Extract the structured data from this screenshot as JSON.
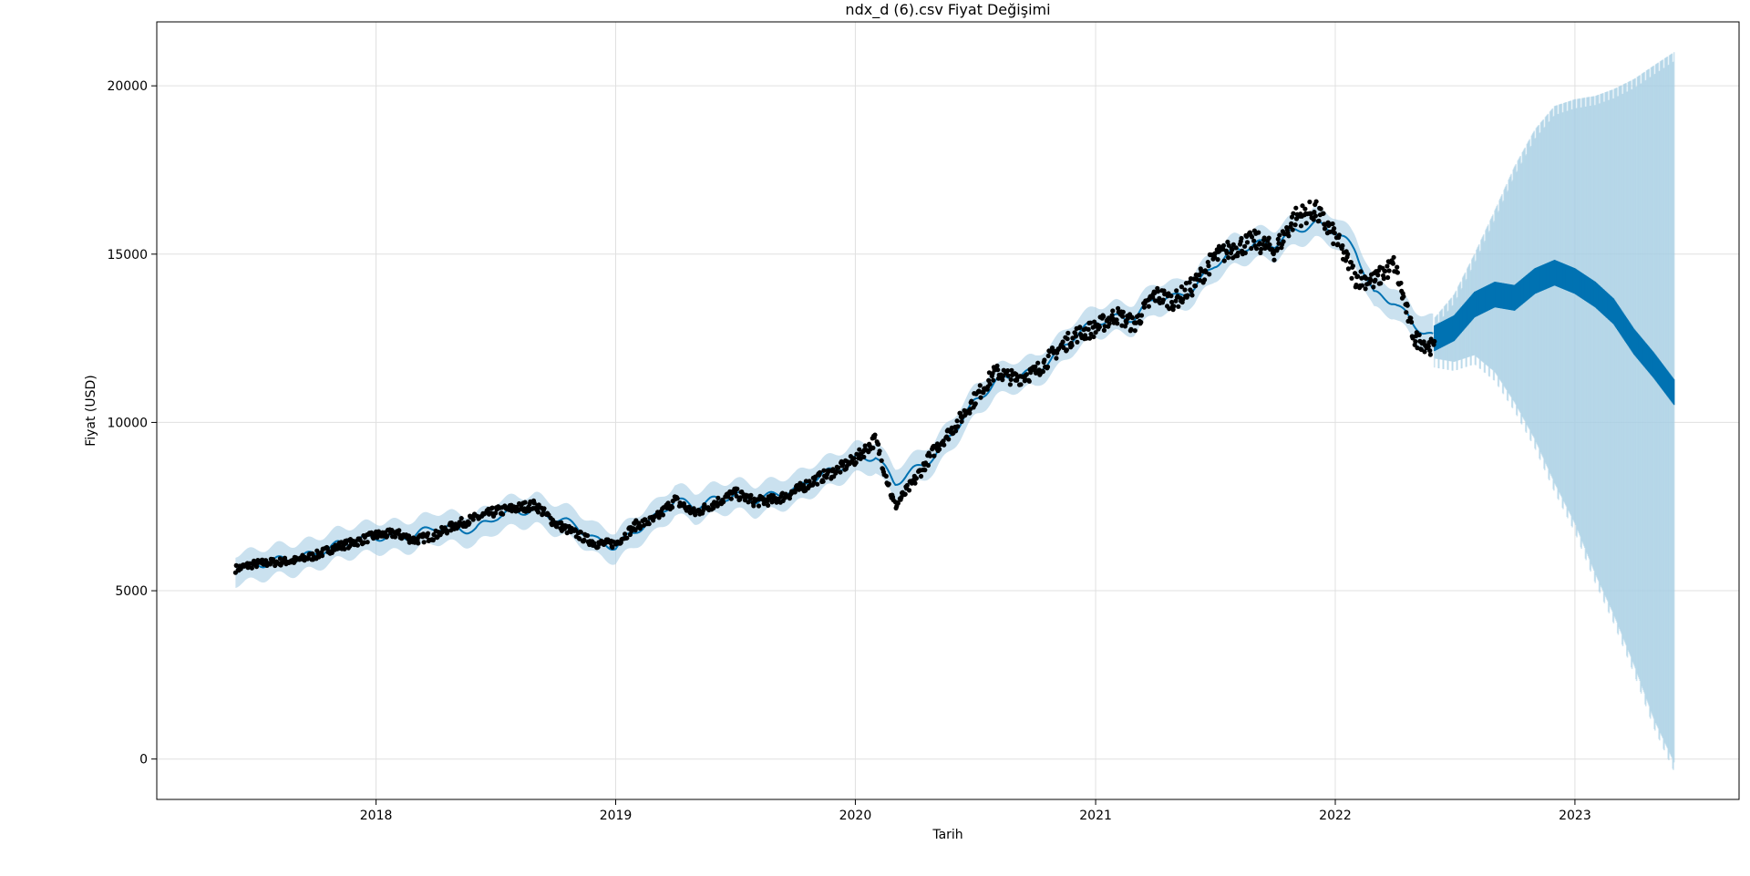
{
  "chart_data": {
    "type": "line",
    "title": "ndx_d (6).csv  Fiyat Değişimi",
    "xlabel": "Tarih",
    "ylabel": "Fiyat (USD)",
    "x_range": [
      "2017-02-01",
      "2023-09-08"
    ],
    "ylim": [
      -1200,
      21900
    ],
    "x_ticks": [
      "2018-01-01",
      "2019-01-01",
      "2020-01-01",
      "2021-01-01",
      "2022-01-01",
      "2023-01-01"
    ],
    "x_tick_labels": [
      "2018",
      "2019",
      "2020",
      "2021",
      "2022",
      "2023"
    ],
    "y_ticks": [
      0,
      5000,
      10000,
      15000,
      20000
    ],
    "y_tick_labels": [
      "0",
      "5000",
      "10000",
      "15000",
      "20000"
    ],
    "grid": true,
    "history_end": "2022-06-01",
    "forecast_end": "2023-06-01",
    "colors": {
      "actual": "#000000",
      "forecast": "#0072b2",
      "uncertainty": "#a6cde4"
    },
    "series": [
      {
        "role": "actual",
        "marker": "dot",
        "x": [
          "2017-06-01",
          "2017-07-01",
          "2017-08-01",
          "2017-09-01",
          "2017-10-01",
          "2017-11-01",
          "2017-12-01",
          "2018-01-01",
          "2018-02-01",
          "2018-03-01",
          "2018-04-01",
          "2018-05-01",
          "2018-06-01",
          "2018-07-01",
          "2018-08-01",
          "2018-09-01",
          "2018-10-01",
          "2018-11-01",
          "2018-12-01",
          "2019-01-01",
          "2019-02-01",
          "2019-03-01",
          "2019-04-01",
          "2019-05-01",
          "2019-06-01",
          "2019-07-01",
          "2019-08-01",
          "2019-09-01",
          "2019-10-01",
          "2019-11-01",
          "2019-12-01",
          "2020-01-01",
          "2020-02-01",
          "2020-03-01",
          "2020-04-01",
          "2020-05-01",
          "2020-06-01",
          "2020-07-01",
          "2020-08-01",
          "2020-09-01",
          "2020-10-01",
          "2020-11-01",
          "2020-12-01",
          "2021-01-01",
          "2021-02-01",
          "2021-03-01",
          "2021-04-01",
          "2021-05-01",
          "2021-06-01",
          "2021-07-01",
          "2021-08-01",
          "2021-09-01",
          "2021-10-01",
          "2021-11-01",
          "2021-12-01",
          "2022-01-01",
          "2022-02-01",
          "2022-03-01",
          "2022-04-01",
          "2022-05-01",
          "2022-06-01"
        ],
        "y": [
          5650,
          5800,
          5850,
          5900,
          6050,
          6300,
          6450,
          6650,
          6700,
          6500,
          6650,
          6950,
          7150,
          7350,
          7450,
          7550,
          7000,
          6700,
          6400,
          6400,
          6950,
          7100,
          7700,
          7300,
          7600,
          7900,
          7650,
          7700,
          7950,
          8300,
          8550,
          8900,
          9500,
          7500,
          8300,
          9200,
          9900,
          10700,
          11500,
          11300,
          11500,
          12100,
          12600,
          12800,
          13200,
          12900,
          13800,
          13600,
          14100,
          14900,
          15200,
          15400,
          15100,
          16100,
          16300,
          15500,
          14300,
          14200,
          14700,
          12500,
          12200
        ]
      },
      {
        "role": "forecast",
        "x": [
          "2017-06-01",
          "2017-07-01",
          "2017-08-01",
          "2017-09-01",
          "2017-10-01",
          "2017-11-01",
          "2017-12-01",
          "2018-01-01",
          "2018-02-01",
          "2018-03-01",
          "2018-04-01",
          "2018-05-01",
          "2018-06-01",
          "2018-07-01",
          "2018-08-01",
          "2018-09-01",
          "2018-10-01",
          "2018-11-01",
          "2018-12-01",
          "2019-01-01",
          "2019-02-01",
          "2019-03-01",
          "2019-04-01",
          "2019-05-01",
          "2019-06-01",
          "2019-07-01",
          "2019-08-01",
          "2019-09-01",
          "2019-10-01",
          "2019-11-01",
          "2019-12-01",
          "2020-01-01",
          "2020-02-01",
          "2020-03-01",
          "2020-04-01",
          "2020-05-01",
          "2020-06-01",
          "2020-07-01",
          "2020-08-01",
          "2020-09-01",
          "2020-10-01",
          "2020-11-01",
          "2020-12-01",
          "2021-01-01",
          "2021-02-01",
          "2021-03-01",
          "2021-04-01",
          "2021-05-01",
          "2021-06-01",
          "2021-07-01",
          "2021-08-01",
          "2021-09-01",
          "2021-10-01",
          "2021-11-01",
          "2021-12-01",
          "2022-01-01",
          "2022-02-01",
          "2022-03-01",
          "2022-04-01",
          "2022-05-01",
          "2022-06-01",
          "2022-07-01",
          "2022-08-01",
          "2022-09-01",
          "2022-10-01",
          "2022-11-01",
          "2022-12-01",
          "2023-01-01",
          "2023-02-01",
          "2023-03-01",
          "2023-04-01",
          "2023-05-01",
          "2023-06-01"
        ],
        "y": [
          5650,
          5750,
          5900,
          5950,
          6100,
          6350,
          6500,
          6600,
          6600,
          6650,
          6900,
          6850,
          6800,
          7200,
          7350,
          7400,
          7150,
          6950,
          6500,
          6300,
          6800,
          7150,
          7700,
          7500,
          7700,
          7850,
          7700,
          7850,
          8000,
          8350,
          8600,
          8900,
          9000,
          8200,
          8600,
          9000,
          9800,
          10600,
          11200,
          11400,
          11500,
          12000,
          12600,
          13000,
          13100,
          13100,
          13700,
          13700,
          14000,
          14700,
          15100,
          15300,
          15300,
          15700,
          15900,
          15700,
          15100,
          13800,
          13600,
          12900,
          12500,
          12800,
          13500,
          13800,
          13700,
          14200,
          14450,
          14200,
          13800,
          13300,
          12400,
          11700,
          10900
        ]
      },
      {
        "role": "uncertainty_upper",
        "x": [
          "2017-06-01",
          "2017-07-01",
          "2017-08-01",
          "2017-09-01",
          "2017-10-01",
          "2017-11-01",
          "2017-12-01",
          "2018-01-01",
          "2018-02-01",
          "2018-03-01",
          "2018-04-01",
          "2018-05-01",
          "2018-06-01",
          "2018-07-01",
          "2018-08-01",
          "2018-09-01",
          "2018-10-01",
          "2018-11-01",
          "2018-12-01",
          "2019-01-01",
          "2019-02-01",
          "2019-03-01",
          "2019-04-01",
          "2019-05-01",
          "2019-06-01",
          "2019-07-01",
          "2019-08-01",
          "2019-09-01",
          "2019-10-01",
          "2019-11-01",
          "2019-12-01",
          "2020-01-01",
          "2020-02-01",
          "2020-03-01",
          "2020-04-01",
          "2020-05-01",
          "2020-06-01",
          "2020-07-01",
          "2020-08-01",
          "2020-09-01",
          "2020-10-01",
          "2020-11-01",
          "2020-12-01",
          "2021-01-01",
          "2021-02-01",
          "2021-03-01",
          "2021-04-01",
          "2021-05-01",
          "2021-06-01",
          "2021-07-01",
          "2021-08-01",
          "2021-09-01",
          "2021-10-01",
          "2021-11-01",
          "2021-12-01",
          "2022-01-01",
          "2022-02-01",
          "2022-03-01",
          "2022-04-01",
          "2022-05-01",
          "2022-06-01",
          "2022-07-01",
          "2022-08-01",
          "2022-09-01",
          "2022-10-01",
          "2022-11-01",
          "2022-12-01",
          "2023-01-01",
          "2023-02-01",
          "2023-03-01",
          "2023-04-01",
          "2023-05-01",
          "2023-06-01"
        ],
        "y": [
          6100,
          6200,
          6350,
          6400,
          6550,
          6800,
          6950,
          7050,
          7050,
          7100,
          7350,
          7300,
          7250,
          7650,
          7800,
          7850,
          7600,
          7400,
          6950,
          6750,
          7250,
          7600,
          8150,
          7950,
          8150,
          8300,
          8150,
          8300,
          8450,
          8800,
          9050,
          9350,
          9450,
          8650,
          9050,
          9450,
          10250,
          11050,
          11650,
          11850,
          11950,
          12450,
          13050,
          13450,
          13550,
          13550,
          14150,
          14150,
          14450,
          15150,
          15550,
          15750,
          15750,
          16150,
          16350,
          16150,
          15550,
          14250,
          14050,
          13350,
          13100,
          13800,
          15000,
          16300,
          17600,
          18700,
          19400,
          19600,
          19700,
          19900,
          20200,
          20600,
          21000
        ]
      },
      {
        "role": "uncertainty_lower",
        "x": [
          "2017-06-01",
          "2017-07-01",
          "2017-08-01",
          "2017-09-01",
          "2017-10-01",
          "2017-11-01",
          "2017-12-01",
          "2018-01-01",
          "2018-02-01",
          "2018-03-01",
          "2018-04-01",
          "2018-05-01",
          "2018-06-01",
          "2018-07-01",
          "2018-08-01",
          "2018-09-01",
          "2018-10-01",
          "2018-11-01",
          "2018-12-01",
          "2019-01-01",
          "2019-02-01",
          "2019-03-01",
          "2019-04-01",
          "2019-05-01",
          "2019-06-01",
          "2019-07-01",
          "2019-08-01",
          "2019-09-01",
          "2019-10-01",
          "2019-11-01",
          "2019-12-01",
          "2020-01-01",
          "2020-02-01",
          "2020-03-01",
          "2020-04-01",
          "2020-05-01",
          "2020-06-01",
          "2020-07-01",
          "2020-08-01",
          "2020-09-01",
          "2020-10-01",
          "2020-11-01",
          "2020-12-01",
          "2021-01-01",
          "2021-02-01",
          "2021-03-01",
          "2021-04-01",
          "2021-05-01",
          "2021-06-01",
          "2021-07-01",
          "2021-08-01",
          "2021-09-01",
          "2021-10-01",
          "2021-11-01",
          "2021-12-01",
          "2022-01-01",
          "2022-02-01",
          "2022-03-01",
          "2022-04-01",
          "2022-05-01",
          "2022-06-01",
          "2022-07-01",
          "2022-08-01",
          "2022-09-01",
          "2022-10-01",
          "2022-11-01",
          "2022-12-01",
          "2023-01-01",
          "2023-02-01",
          "2023-03-01",
          "2023-04-01",
          "2023-05-01",
          "2023-06-01"
        ],
        "y": [
          5200,
          5300,
          5450,
          5500,
          5650,
          5900,
          6050,
          6150,
          6150,
          6200,
          6450,
          6400,
          6350,
          6750,
          6900,
          6950,
          6700,
          6500,
          6050,
          5850,
          6350,
          6700,
          7250,
          7050,
          7250,
          7400,
          7250,
          7400,
          7550,
          7900,
          8150,
          8450,
          8550,
          7750,
          8150,
          8550,
          9350,
          10150,
          10750,
          10950,
          11050,
          11550,
          12150,
          12550,
          12650,
          12650,
          13250,
          13250,
          13550,
          14250,
          14650,
          14850,
          14850,
          15250,
          15450,
          15250,
          14650,
          13350,
          13150,
          12450,
          11900,
          11800,
          12000,
          11500,
          10600,
          9500,
          8200,
          7000,
          5500,
          4300,
          2800,
          1200,
          -100
        ]
      }
    ]
  }
}
